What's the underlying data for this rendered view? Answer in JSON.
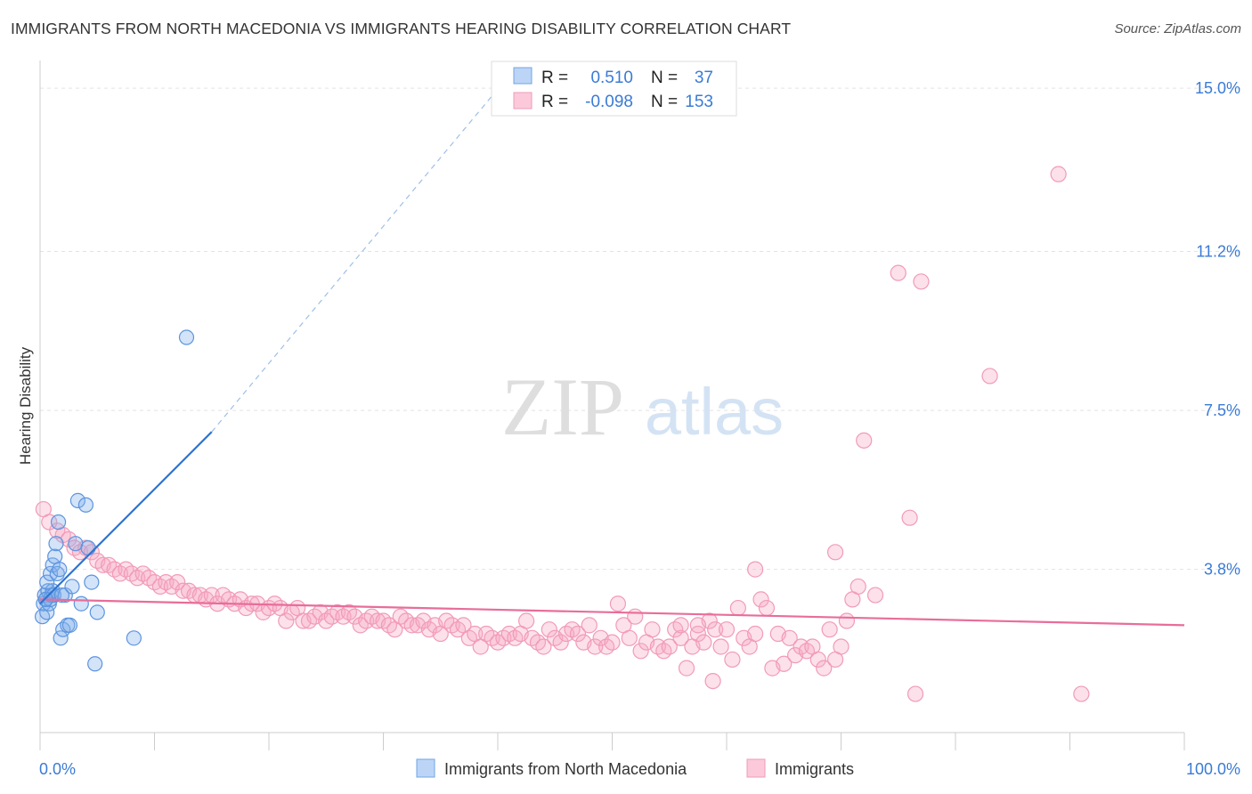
{
  "title": "IMMIGRANTS FROM NORTH MACEDONIA VS IMMIGRANTS HEARING DISABILITY CORRELATION CHART",
  "source": "Source: ZipAtlas.com",
  "watermark": {
    "zip": "ZIP",
    "atlas": "atlas"
  },
  "legend_box": {
    "rows": [
      {
        "r_label": "R =",
        "r_value": "0.510",
        "n_label": "N =",
        "n_value": "37"
      },
      {
        "r_label": "R =",
        "r_value": "-0.098",
        "n_label": "N =",
        "n_value": "153"
      }
    ]
  },
  "chart_data": {
    "type": "scatter",
    "title": "IMMIGRANTS FROM NORTH MACEDONIA VS IMMIGRANTS HEARING DISABILITY CORRELATION CHART",
    "xlabel": "",
    "ylabel": "Hearing Disability",
    "xlim": [
      0,
      100
    ],
    "ylim": [
      0,
      15.5
    ],
    "x_tick_labels": [
      "0.0%",
      "100.0%"
    ],
    "y_ticks": [
      3.8,
      7.5,
      11.2,
      15.0
    ],
    "y_tick_labels": [
      "3.8%",
      "7.5%",
      "11.2%",
      "15.0%"
    ],
    "grid": "horizontal dashed",
    "legend_position": "bottom-center",
    "colors": {
      "blue": "#6fa4e8",
      "blue_line": "#2f74d0",
      "pink": "#f29ab8",
      "pink_line": "#e86d9a",
      "value_text": "#3a7bd5"
    },
    "series": [
      {
        "name": "Immigrants from North Macedonia",
        "color": "#6fa4e8",
        "points": [
          [
            0.2,
            2.7
          ],
          [
            0.3,
            3.0
          ],
          [
            0.4,
            3.2
          ],
          [
            0.5,
            3.1
          ],
          [
            0.6,
            2.8
          ],
          [
            0.7,
            3.3
          ],
          [
            0.8,
            3.0
          ],
          [
            0.9,
            3.1
          ],
          [
            1.0,
            3.2
          ],
          [
            1.1,
            3.3
          ],
          [
            1.2,
            3.2
          ],
          [
            0.6,
            3.5
          ],
          [
            0.9,
            3.7
          ],
          [
            1.1,
            3.9
          ],
          [
            1.3,
            4.1
          ],
          [
            1.4,
            4.4
          ],
          [
            1.5,
            3.7
          ],
          [
            1.6,
            4.9
          ],
          [
            1.7,
            3.8
          ],
          [
            1.8,
            2.2
          ],
          [
            2.0,
            2.4
          ],
          [
            2.2,
            3.2
          ],
          [
            2.4,
            2.5
          ],
          [
            2.6,
            2.5
          ],
          [
            2.8,
            3.4
          ],
          [
            3.1,
            4.4
          ],
          [
            3.3,
            5.4
          ],
          [
            3.6,
            3.0
          ],
          [
            4.0,
            5.3
          ],
          [
            4.2,
            4.3
          ],
          [
            4.5,
            3.5
          ],
          [
            4.8,
            1.6
          ],
          [
            5.0,
            2.8
          ],
          [
            8.2,
            2.2
          ],
          [
            12.8,
            9.2
          ],
          [
            0.5,
            3.1
          ],
          [
            1.9,
            3.2
          ]
        ],
        "trend": {
          "x": [
            0,
            15
          ],
          "y": [
            3.0,
            7.0
          ],
          "dashed_to": {
            "x": 41,
            "y": 15.3
          }
        }
      },
      {
        "name": "Immigrants",
        "color": "#f29ab8",
        "points": [
          [
            0.3,
            5.2
          ],
          [
            0.8,
            4.9
          ],
          [
            1.5,
            4.7
          ],
          [
            2.0,
            4.6
          ],
          [
            2.5,
            4.5
          ],
          [
            3.0,
            4.3
          ],
          [
            3.5,
            4.2
          ],
          [
            4.0,
            4.3
          ],
          [
            4.5,
            4.2
          ],
          [
            5.0,
            4.0
          ],
          [
            5.5,
            3.9
          ],
          [
            6.0,
            3.9
          ],
          [
            6.5,
            3.8
          ],
          [
            7.0,
            3.7
          ],
          [
            7.5,
            3.8
          ],
          [
            8.0,
            3.7
          ],
          [
            8.5,
            3.6
          ],
          [
            9.0,
            3.7
          ],
          [
            9.5,
            3.6
          ],
          [
            10.0,
            3.5
          ],
          [
            10.5,
            3.4
          ],
          [
            11.0,
            3.5
          ],
          [
            11.5,
            3.4
          ],
          [
            12.0,
            3.5
          ],
          [
            12.5,
            3.3
          ],
          [
            13.0,
            3.3
          ],
          [
            13.5,
            3.2
          ],
          [
            14.0,
            3.2
          ],
          [
            14.5,
            3.1
          ],
          [
            15.0,
            3.2
          ],
          [
            15.5,
            3.0
          ],
          [
            16.0,
            3.2
          ],
          [
            16.5,
            3.1
          ],
          [
            17.0,
            3.0
          ],
          [
            17.5,
            3.1
          ],
          [
            18.0,
            2.9
          ],
          [
            18.5,
            3.0
          ],
          [
            19.0,
            3.0
          ],
          [
            19.5,
            2.8
          ],
          [
            20.0,
            2.9
          ],
          [
            20.5,
            3.0
          ],
          [
            21.0,
            2.9
          ],
          [
            21.5,
            2.6
          ],
          [
            22.0,
            2.8
          ],
          [
            22.5,
            2.9
          ],
          [
            23.0,
            2.6
          ],
          [
            23.5,
            2.6
          ],
          [
            24.0,
            2.7
          ],
          [
            24.5,
            2.8
          ],
          [
            25.0,
            2.6
          ],
          [
            25.5,
            2.7
          ],
          [
            26.0,
            2.8
          ],
          [
            26.5,
            2.7
          ],
          [
            27.0,
            2.8
          ],
          [
            27.5,
            2.7
          ],
          [
            28.0,
            2.5
          ],
          [
            28.5,
            2.6
          ],
          [
            29.0,
            2.7
          ],
          [
            29.5,
            2.6
          ],
          [
            30.0,
            2.6
          ],
          [
            30.5,
            2.5
          ],
          [
            31.0,
            2.4
          ],
          [
            31.5,
            2.7
          ],
          [
            32.0,
            2.6
          ],
          [
            32.5,
            2.5
          ],
          [
            33.0,
            2.5
          ],
          [
            33.5,
            2.6
          ],
          [
            34.0,
            2.4
          ],
          [
            34.5,
            2.5
          ],
          [
            35.0,
            2.3
          ],
          [
            35.5,
            2.6
          ],
          [
            36.0,
            2.5
          ],
          [
            36.5,
            2.4
          ],
          [
            37.0,
            2.5
          ],
          [
            37.5,
            2.2
          ],
          [
            38.0,
            2.3
          ],
          [
            38.5,
            2.0
          ],
          [
            39.0,
            2.3
          ],
          [
            39.5,
            2.2
          ],
          [
            40.0,
            2.1
          ],
          [
            40.5,
            2.2
          ],
          [
            41.0,
            2.3
          ],
          [
            41.5,
            2.2
          ],
          [
            42.0,
            2.3
          ],
          [
            42.5,
            2.6
          ],
          [
            43.0,
            2.2
          ],
          [
            43.5,
            2.1
          ],
          [
            44.0,
            2.0
          ],
          [
            44.5,
            2.4
          ],
          [
            45.0,
            2.2
          ],
          [
            45.5,
            2.1
          ],
          [
            46.0,
            2.3
          ],
          [
            46.5,
            2.4
          ],
          [
            47.0,
            2.3
          ],
          [
            47.5,
            2.1
          ],
          [
            48.0,
            2.5
          ],
          [
            48.5,
            2.0
          ],
          [
            49.0,
            2.2
          ],
          [
            49.5,
            2.0
          ],
          [
            50.0,
            2.1
          ],
          [
            50.5,
            3.0
          ],
          [
            51.0,
            2.5
          ],
          [
            51.5,
            2.2
          ],
          [
            52.0,
            2.7
          ],
          [
            52.5,
            1.9
          ],
          [
            53.0,
            2.1
          ],
          [
            53.5,
            2.4
          ],
          [
            54.0,
            2.0
          ],
          [
            54.5,
            1.9
          ],
          [
            55.0,
            2.0
          ],
          [
            55.5,
            2.4
          ],
          [
            56.0,
            2.2
          ],
          [
            56.5,
            1.5
          ],
          [
            57.0,
            2.0
          ],
          [
            57.5,
            2.3
          ],
          [
            58.0,
            2.1
          ],
          [
            58.5,
            2.6
          ],
          [
            59.0,
            2.4
          ],
          [
            59.5,
            2.0
          ],
          [
            60.0,
            2.4
          ],
          [
            60.5,
            1.7
          ],
          [
            61.0,
            2.9
          ],
          [
            61.5,
            2.2
          ],
          [
            62.0,
            2.0
          ],
          [
            62.5,
            2.3
          ],
          [
            63.0,
            3.1
          ],
          [
            63.5,
            2.9
          ],
          [
            64.0,
            1.5
          ],
          [
            64.5,
            2.3
          ],
          [
            65.0,
            1.6
          ],
          [
            65.5,
            2.2
          ],
          [
            66.0,
            1.8
          ],
          [
            66.5,
            2.0
          ],
          [
            67.0,
            1.9
          ],
          [
            67.5,
            2.0
          ],
          [
            68.0,
            1.7
          ],
          [
            68.5,
            1.5
          ],
          [
            69.0,
            2.4
          ],
          [
            69.5,
            1.7
          ],
          [
            70.0,
            2.0
          ],
          [
            70.5,
            2.6
          ],
          [
            71.0,
            3.1
          ],
          [
            71.5,
            3.4
          ],
          [
            73.0,
            3.2
          ],
          [
            58.8,
            1.2
          ],
          [
            62.5,
            3.8
          ],
          [
            69.5,
            4.2
          ],
          [
            76.5,
            0.9
          ],
          [
            91.0,
            0.9
          ],
          [
            76.0,
            5.0
          ],
          [
            72.0,
            6.8
          ],
          [
            83.0,
            8.3
          ],
          [
            89.0,
            13.0
          ],
          [
            77.0,
            10.5
          ],
          [
            75.0,
            10.7
          ],
          [
            56.0,
            2.5
          ],
          [
            57.5,
            2.5
          ]
        ],
        "trend": {
          "x": [
            0,
            100
          ],
          "y": [
            3.1,
            2.5
          ]
        }
      }
    ]
  }
}
